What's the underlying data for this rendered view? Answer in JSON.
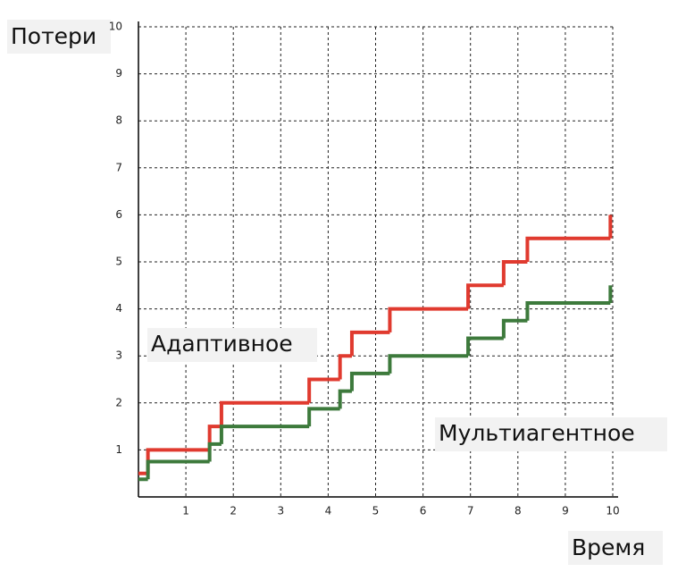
{
  "chart_data": {
    "type": "step",
    "y_label": "Потери",
    "x_label": "Время",
    "series": [
      {
        "name": "Адаптивное",
        "color": "#e03a2f",
        "x": [
          0,
          0.2,
          1.5,
          1.75,
          3.6,
          4.25,
          4.5,
          5.3,
          6.95,
          7.7,
          8.2,
          9.95
        ],
        "values": [
          0.5,
          1,
          1.5,
          2,
          2.5,
          3,
          3.5,
          4,
          4.5,
          5,
          5.5,
          6
        ]
      },
      {
        "name": "Мультиагентное",
        "color": "#3d7a3c",
        "x": [
          0,
          0.2,
          1.5,
          1.75,
          3.6,
          4.25,
          4.5,
          5.3,
          6.95,
          7.7,
          8.2,
          9.95
        ],
        "values": [
          0.375,
          0.75,
          1.125,
          1.5,
          1.875,
          2.25,
          2.625,
          3,
          3.375,
          3.75,
          4.125,
          4.5
        ]
      }
    ],
    "xlim": [
      0,
      10
    ],
    "ylim": [
      0,
      10
    ],
    "xticks": [
      1,
      2,
      3,
      4,
      5,
      6,
      7,
      8,
      9,
      10
    ],
    "yticks": [
      1,
      2,
      3,
      4,
      5,
      6,
      7,
      8,
      9,
      10
    ],
    "grid": true
  }
}
